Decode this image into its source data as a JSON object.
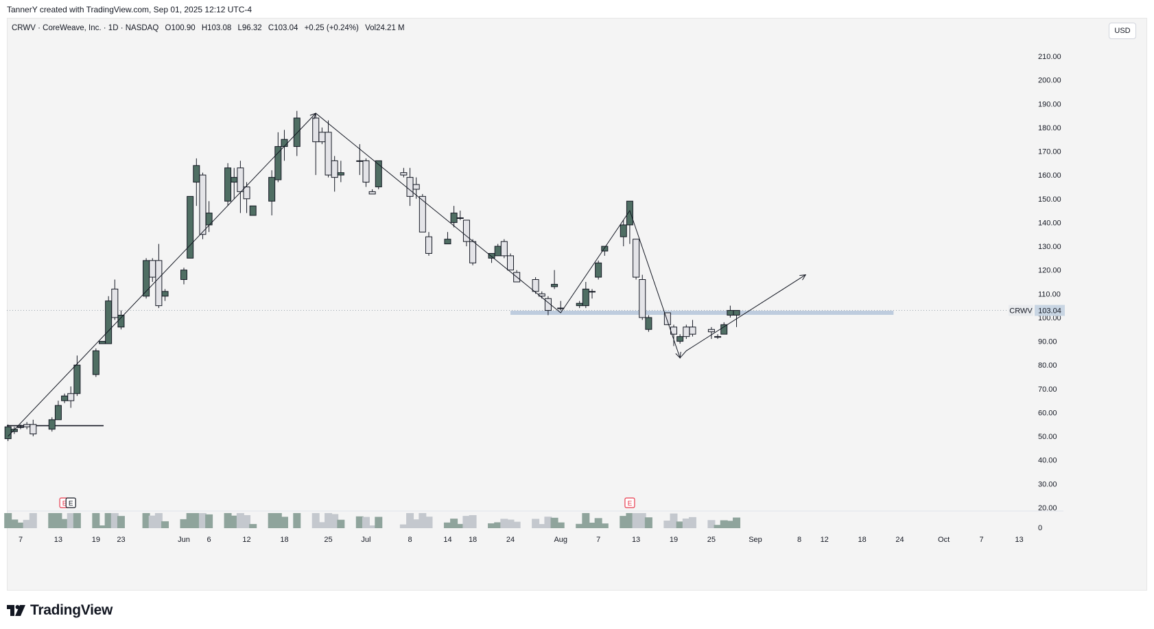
{
  "attribution": "TannerY created with TradingView.com, Sep 01, 2025 12:12 UTC-4",
  "legend": {
    "symbol": "CRWV · CoreWeave, Inc. · 1D · NASDAQ",
    "open": "O100.90",
    "high": "H103.08",
    "low": "L96.32",
    "close": "C103.04",
    "change": "+0.25 (+0.24%)",
    "volume": "Vol24.21 M"
  },
  "currency_button": "USD",
  "price_tag": {
    "symbol": "CRWV",
    "value": "103.04"
  },
  "brand": "TradingView",
  "colors": {
    "up": "#4f6e63",
    "down_fill": "#e4e4e8",
    "wick": "#131722",
    "zone": "#b8c8dc",
    "tag_bg": "#4f6e63"
  },
  "earnings_markers": [
    {
      "label": "E",
      "date": "2025-05-14",
      "style": "red"
    },
    {
      "label": "E",
      "date": "2025-05-15",
      "style": "dark"
    },
    {
      "label": "E",
      "date": "2025-08-12",
      "style": "red"
    }
  ],
  "chart_data": {
    "type": "candlestick",
    "symbol": "CRWV",
    "interval": "1D",
    "y_ticks": [
      20,
      30,
      40,
      50,
      60,
      70,
      80,
      90,
      100,
      110,
      120,
      130,
      140,
      150,
      160,
      170,
      180,
      190,
      200,
      210
    ],
    "ylim": [
      18,
      220
    ],
    "x_ticks": [
      {
        "label": "7",
        "date": "2025-05-07"
      },
      {
        "label": "13",
        "date": "2025-05-13"
      },
      {
        "label": "19",
        "date": "2025-05-19"
      },
      {
        "label": "23",
        "date": "2025-05-23"
      },
      {
        "label": "Jun",
        "date": "2025-06-02"
      },
      {
        "label": "6",
        "date": "2025-06-06"
      },
      {
        "label": "12",
        "date": "2025-06-12"
      },
      {
        "label": "18",
        "date": "2025-06-18"
      },
      {
        "label": "25",
        "date": "2025-06-25"
      },
      {
        "label": "Jul",
        "date": "2025-07-01"
      },
      {
        "label": "8",
        "date": "2025-07-08"
      },
      {
        "label": "14",
        "date": "2025-07-14"
      },
      {
        "label": "18",
        "date": "2025-07-18"
      },
      {
        "label": "24",
        "date": "2025-07-24"
      },
      {
        "label": "Aug",
        "date": "2025-08-01"
      },
      {
        "label": "7",
        "date": "2025-08-07"
      },
      {
        "label": "13",
        "date": "2025-08-13"
      },
      {
        "label": "19",
        "date": "2025-08-19"
      },
      {
        "label": "25",
        "date": "2025-08-25"
      },
      {
        "label": "Sep",
        "date": "2025-09-01"
      },
      {
        "label": "8",
        "date": "2025-09-08"
      },
      {
        "label": "12",
        "date": "2025-09-12"
      },
      {
        "label": "18",
        "date": "2025-09-18"
      },
      {
        "label": "24",
        "date": "2025-09-24"
      },
      {
        "label": "Oct",
        "date": "2025-10-01"
      },
      {
        "label": "7",
        "date": "2025-10-07"
      },
      {
        "label": "13",
        "date": "2025-10-13"
      }
    ],
    "volume_axis_label": "0",
    "candles": [
      {
        "date": "2025-05-05",
        "o": 49,
        "h": 55,
        "l": 48,
        "c": 54
      },
      {
        "date": "2025-05-06",
        "o": 52,
        "h": 54,
        "l": 51,
        "c": 53
      },
      {
        "date": "2025-05-07",
        "o": 54,
        "h": 55,
        "l": 53,
        "c": 54
      },
      {
        "date": "2025-05-08",
        "o": 55,
        "h": 56,
        "l": 53,
        "c": 54
      },
      {
        "date": "2025-05-09",
        "o": 55,
        "h": 57,
        "l": 50,
        "c": 51
      },
      {
        "date": "2025-05-12",
        "o": 53,
        "h": 58,
        "l": 52,
        "c": 57
      },
      {
        "date": "2025-05-13",
        "o": 57,
        "h": 65,
        "l": 57,
        "c": 63
      },
      {
        "date": "2025-05-14",
        "o": 65,
        "h": 68,
        "l": 64,
        "c": 67
      },
      {
        "date": "2025-05-15",
        "o": 68,
        "h": 71,
        "l": 62,
        "c": 65
      },
      {
        "date": "2025-05-16",
        "o": 68,
        "h": 84,
        "l": 67,
        "c": 80
      },
      {
        "date": "2025-05-19",
        "o": 76,
        "h": 87,
        "l": 75,
        "c": 86
      },
      {
        "date": "2025-05-20",
        "o": 89,
        "h": 90,
        "l": 89,
        "c": 90
      },
      {
        "date": "2025-05-21",
        "o": 89,
        "h": 109,
        "l": 89,
        "c": 107
      },
      {
        "date": "2025-05-22",
        "o": 112,
        "h": 116,
        "l": 99,
        "c": 100
      },
      {
        "date": "2025-05-23",
        "o": 96,
        "h": 103,
        "l": 95,
        "c": 101
      },
      {
        "date": "2025-05-27",
        "o": 109,
        "h": 125,
        "l": 108,
        "c": 124
      },
      {
        "date": "2025-05-28",
        "o": 124,
        "h": 125,
        "l": 115,
        "c": 117
      },
      {
        "date": "2025-05-29",
        "o": 124,
        "h": 131,
        "l": 104,
        "c": 105
      },
      {
        "date": "2025-05-30",
        "o": 109,
        "h": 112,
        "l": 107,
        "c": 111
      },
      {
        "date": "2025-06-02",
        "o": 116,
        "h": 121,
        "l": 114,
        "c": 120
      },
      {
        "date": "2025-06-03",
        "o": 125,
        "h": 151,
        "l": 125,
        "c": 151
      },
      {
        "date": "2025-06-04",
        "o": 157,
        "h": 167,
        "l": 147,
        "c": 164
      },
      {
        "date": "2025-06-05",
        "o": 160,
        "h": 161,
        "l": 133,
        "c": 135
      },
      {
        "date": "2025-06-06",
        "o": 139,
        "h": 149,
        "l": 136,
        "c": 144
      },
      {
        "date": "2025-06-09",
        "o": 149,
        "h": 165,
        "l": 147,
        "c": 163
      },
      {
        "date": "2025-06-10",
        "o": 157,
        "h": 163,
        "l": 150,
        "c": 159
      },
      {
        "date": "2025-06-11",
        "o": 163,
        "h": 166,
        "l": 144,
        "c": 153
      },
      {
        "date": "2025-06-12",
        "o": 155,
        "h": 157,
        "l": 144,
        "c": 150
      },
      {
        "date": "2025-06-13",
        "o": 143,
        "h": 147,
        "l": 143,
        "c": 147
      },
      {
        "date": "2025-06-16",
        "o": 149,
        "h": 162,
        "l": 143,
        "c": 159
      },
      {
        "date": "2025-06-17",
        "o": 158,
        "h": 178,
        "l": 157,
        "c": 172
      },
      {
        "date": "2025-06-18",
        "o": 172,
        "h": 179,
        "l": 166,
        "c": 175
      },
      {
        "date": "2025-06-20",
        "o": 172,
        "h": 187,
        "l": 168,
        "c": 184
      },
      {
        "date": "2025-06-23",
        "o": 184,
        "h": 186,
        "l": 160,
        "c": 174
      },
      {
        "date": "2025-06-24",
        "o": 178,
        "h": 180,
        "l": 173,
        "c": 174
      },
      {
        "date": "2025-06-25",
        "o": 178,
        "h": 183,
        "l": 159,
        "c": 160
      },
      {
        "date": "2025-06-26",
        "o": 166,
        "h": 168,
        "l": 153,
        "c": 159
      },
      {
        "date": "2025-06-27",
        "o": 160,
        "h": 166,
        "l": 157,
        "c": 161
      },
      {
        "date": "2025-06-30",
        "o": 166,
        "h": 173,
        "l": 160,
        "c": 166
      },
      {
        "date": "2025-07-01",
        "o": 166,
        "h": 167,
        "l": 155,
        "c": 157
      },
      {
        "date": "2025-07-02",
        "o": 153,
        "h": 154,
        "l": 152,
        "c": 152
      },
      {
        "date": "2025-07-03",
        "o": 155,
        "h": 166,
        "l": 154,
        "c": 166
      },
      {
        "date": "2025-07-07",
        "o": 161,
        "h": 163,
        "l": 159,
        "c": 160
      },
      {
        "date": "2025-07-08",
        "o": 159,
        "h": 163,
        "l": 147,
        "c": 151
      },
      {
        "date": "2025-07-09",
        "o": 156,
        "h": 159,
        "l": 150,
        "c": 154
      },
      {
        "date": "2025-07-10",
        "o": 151,
        "h": 152,
        "l": 136,
        "c": 136
      },
      {
        "date": "2025-07-11",
        "o": 134,
        "h": 136,
        "l": 126,
        "c": 127
      },
      {
        "date": "2025-07-14",
        "o": 131,
        "h": 136,
        "l": 131,
        "c": 133
      },
      {
        "date": "2025-07-15",
        "o": 140,
        "h": 147,
        "l": 138,
        "c": 144
      },
      {
        "date": "2025-07-16",
        "o": 142,
        "h": 145,
        "l": 141,
        "c": 142
      },
      {
        "date": "2025-07-17",
        "o": 141,
        "h": 141,
        "l": 130,
        "c": 132
      },
      {
        "date": "2025-07-18",
        "o": 132,
        "h": 133,
        "l": 122,
        "c": 123
      },
      {
        "date": "2025-07-21",
        "o": 125,
        "h": 127,
        "l": 123,
        "c": 127
      },
      {
        "date": "2025-07-22",
        "o": 126,
        "h": 131,
        "l": 126,
        "c": 130
      },
      {
        "date": "2025-07-23",
        "o": 132,
        "h": 133,
        "l": 125,
        "c": 126
      },
      {
        "date": "2025-07-24",
        "o": 126,
        "h": 127,
        "l": 120,
        "c": 120
      },
      {
        "date": "2025-07-25",
        "o": 119,
        "h": 120,
        "l": 115,
        "c": 115
      },
      {
        "date": "2025-07-28",
        "o": 116,
        "h": 117,
        "l": 110,
        "c": 111
      },
      {
        "date": "2025-07-29",
        "o": 110,
        "h": 111,
        "l": 108,
        "c": 109
      },
      {
        "date": "2025-07-30",
        "o": 108,
        "h": 109,
        "l": 101,
        "c": 103
      },
      {
        "date": "2025-07-31",
        "o": 113,
        "h": 120,
        "l": 112,
        "c": 114
      },
      {
        "date": "2025-08-01",
        "o": 104,
        "h": 107,
        "l": 103,
        "c": 104
      },
      {
        "date": "2025-08-04",
        "o": 105,
        "h": 107,
        "l": 104,
        "c": 106
      },
      {
        "date": "2025-08-05",
        "o": 105,
        "h": 115,
        "l": 104,
        "c": 112
      },
      {
        "date": "2025-08-06",
        "o": 111,
        "h": 112,
        "l": 108,
        "c": 111
      },
      {
        "date": "2025-08-07",
        "o": 117,
        "h": 124,
        "l": 116,
        "c": 123
      },
      {
        "date": "2025-08-08",
        "o": 128,
        "h": 130,
        "l": 126,
        "c": 130
      },
      {
        "date": "2025-08-11",
        "o": 134,
        "h": 141,
        "l": 130,
        "c": 139
      },
      {
        "date": "2025-08-12",
        "o": 139,
        "h": 149,
        "l": 131,
        "c": 149
      },
      {
        "date": "2025-08-13",
        "o": 133,
        "h": 133,
        "l": 116,
        "c": 117
      },
      {
        "date": "2025-08-14",
        "o": 116,
        "h": 118,
        "l": 99,
        "c": 100
      },
      {
        "date": "2025-08-15",
        "o": 95,
        "h": 101,
        "l": 94,
        "c": 100
      },
      {
        "date": "2025-08-18",
        "o": 102,
        "h": 102,
        "l": 97,
        "c": 97
      },
      {
        "date": "2025-08-19",
        "o": 96,
        "h": 97,
        "l": 88,
        "c": 93
      },
      {
        "date": "2025-08-20",
        "o": 90,
        "h": 93,
        "l": 89,
        "c": 92
      },
      {
        "date": "2025-08-21",
        "o": 96,
        "h": 97,
        "l": 91,
        "c": 92
      },
      {
        "date": "2025-08-22",
        "o": 96,
        "h": 99,
        "l": 92,
        "c": 93
      },
      {
        "date": "2025-08-25",
        "o": 95,
        "h": 96,
        "l": 91,
        "c": 94
      },
      {
        "date": "2025-08-26",
        "o": 92,
        "h": 93,
        "l": 91,
        "c": 92
      },
      {
        "date": "2025-08-27",
        "o": 93,
        "h": 98,
        "l": 93,
        "c": 97
      },
      {
        "date": "2025-08-28",
        "o": 101,
        "h": 105,
        "l": 100,
        "c": 103
      },
      {
        "date": "2025-08-29",
        "o": 101,
        "h": 103,
        "l": 96,
        "c": 103
      }
    ],
    "volume_style": "relative bars, grey for down days, green for up days, dark for unusually low-volume blocks",
    "annotations": {
      "support_zone": {
        "price": 102,
        "from": "2025-07-24",
        "to": "2025-09-23"
      },
      "base_line": {
        "price": 54.5,
        "from": "2025-05-05",
        "to": "2025-05-20"
      },
      "zigzag": [
        {
          "date": "2025-05-05",
          "price": 50
        },
        {
          "date": "2025-06-23",
          "price": 186
        },
        {
          "date": "2025-08-01",
          "price": 102
        },
        {
          "date": "2025-08-12",
          "price": 145
        },
        {
          "date": "2025-08-20",
          "price": 83
        },
        {
          "date": "2025-08-21",
          "price": 86
        },
        {
          "date": "2025-09-09",
          "price": 118
        }
      ]
    }
  }
}
